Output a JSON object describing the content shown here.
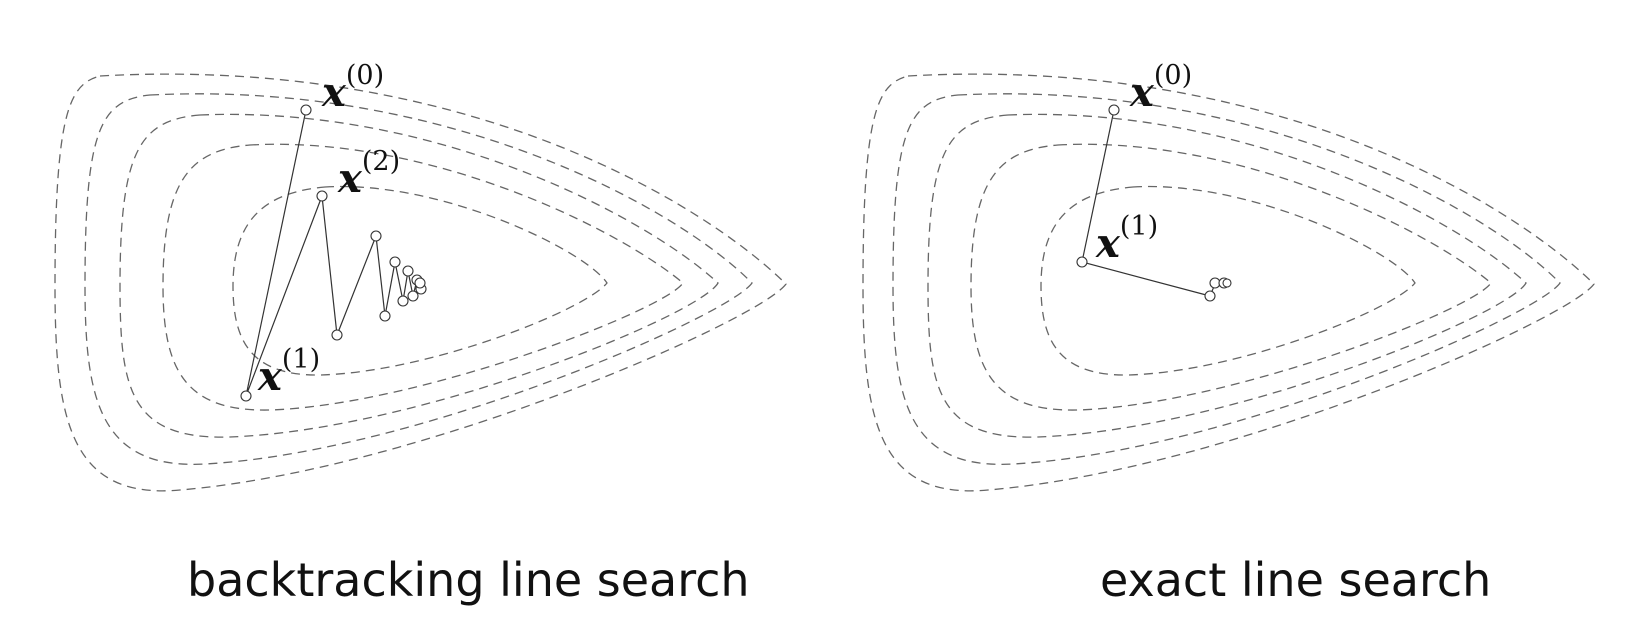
{
  "panels": [
    {
      "caption": "backtracking line search",
      "labels": [
        {
          "var": "x",
          "sup": "(0)"
        },
        {
          "var": "x",
          "sup": "(2)"
        },
        {
          "var": "x",
          "sup": "(1)"
        }
      ]
    },
    {
      "caption": "exact line search",
      "labels": [
        {
          "var": "x",
          "sup": "(0)"
        },
        {
          "var": "x",
          "sup": "(1)"
        }
      ]
    }
  ],
  "colors": {
    "contour": "#666666",
    "path": "#333333",
    "text": "#111111"
  }
}
